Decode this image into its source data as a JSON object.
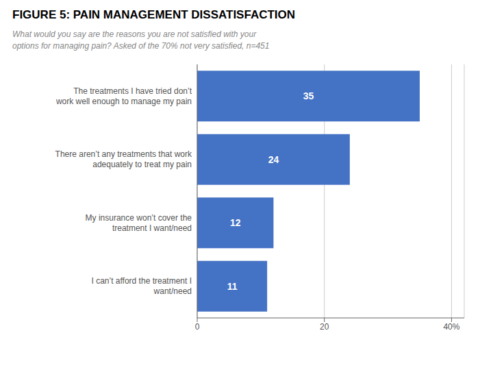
{
  "chart_data": {
    "type": "bar",
    "title": "FIGURE 5: PAIN MANAGEMENT DISSATISFACTION",
    "subtitle": "What would you say are the reasons you are not satisfied with your\noptions for managing pain? Asked of the 70% not very satisfied, n=451",
    "categories": [
      "I can’t afford the treatment I\nwant/need",
      "My insurance won’t cover the\ntreatment I want/need",
      "There aren’t any treatments that work\nadequately to treat my pain",
      "The treatments I have tried don’t\nwork well enough to manage my pain"
    ],
    "values": [
      11,
      12,
      24,
      35
    ],
    "color": "#4472C4",
    "orientation": "horizontal",
    "xlim": [
      0,
      42
    ],
    "xticks": [
      0,
      20,
      {
        "value": 40,
        "label": "40%"
      }
    ],
    "grid": true,
    "data_labels": true
  }
}
